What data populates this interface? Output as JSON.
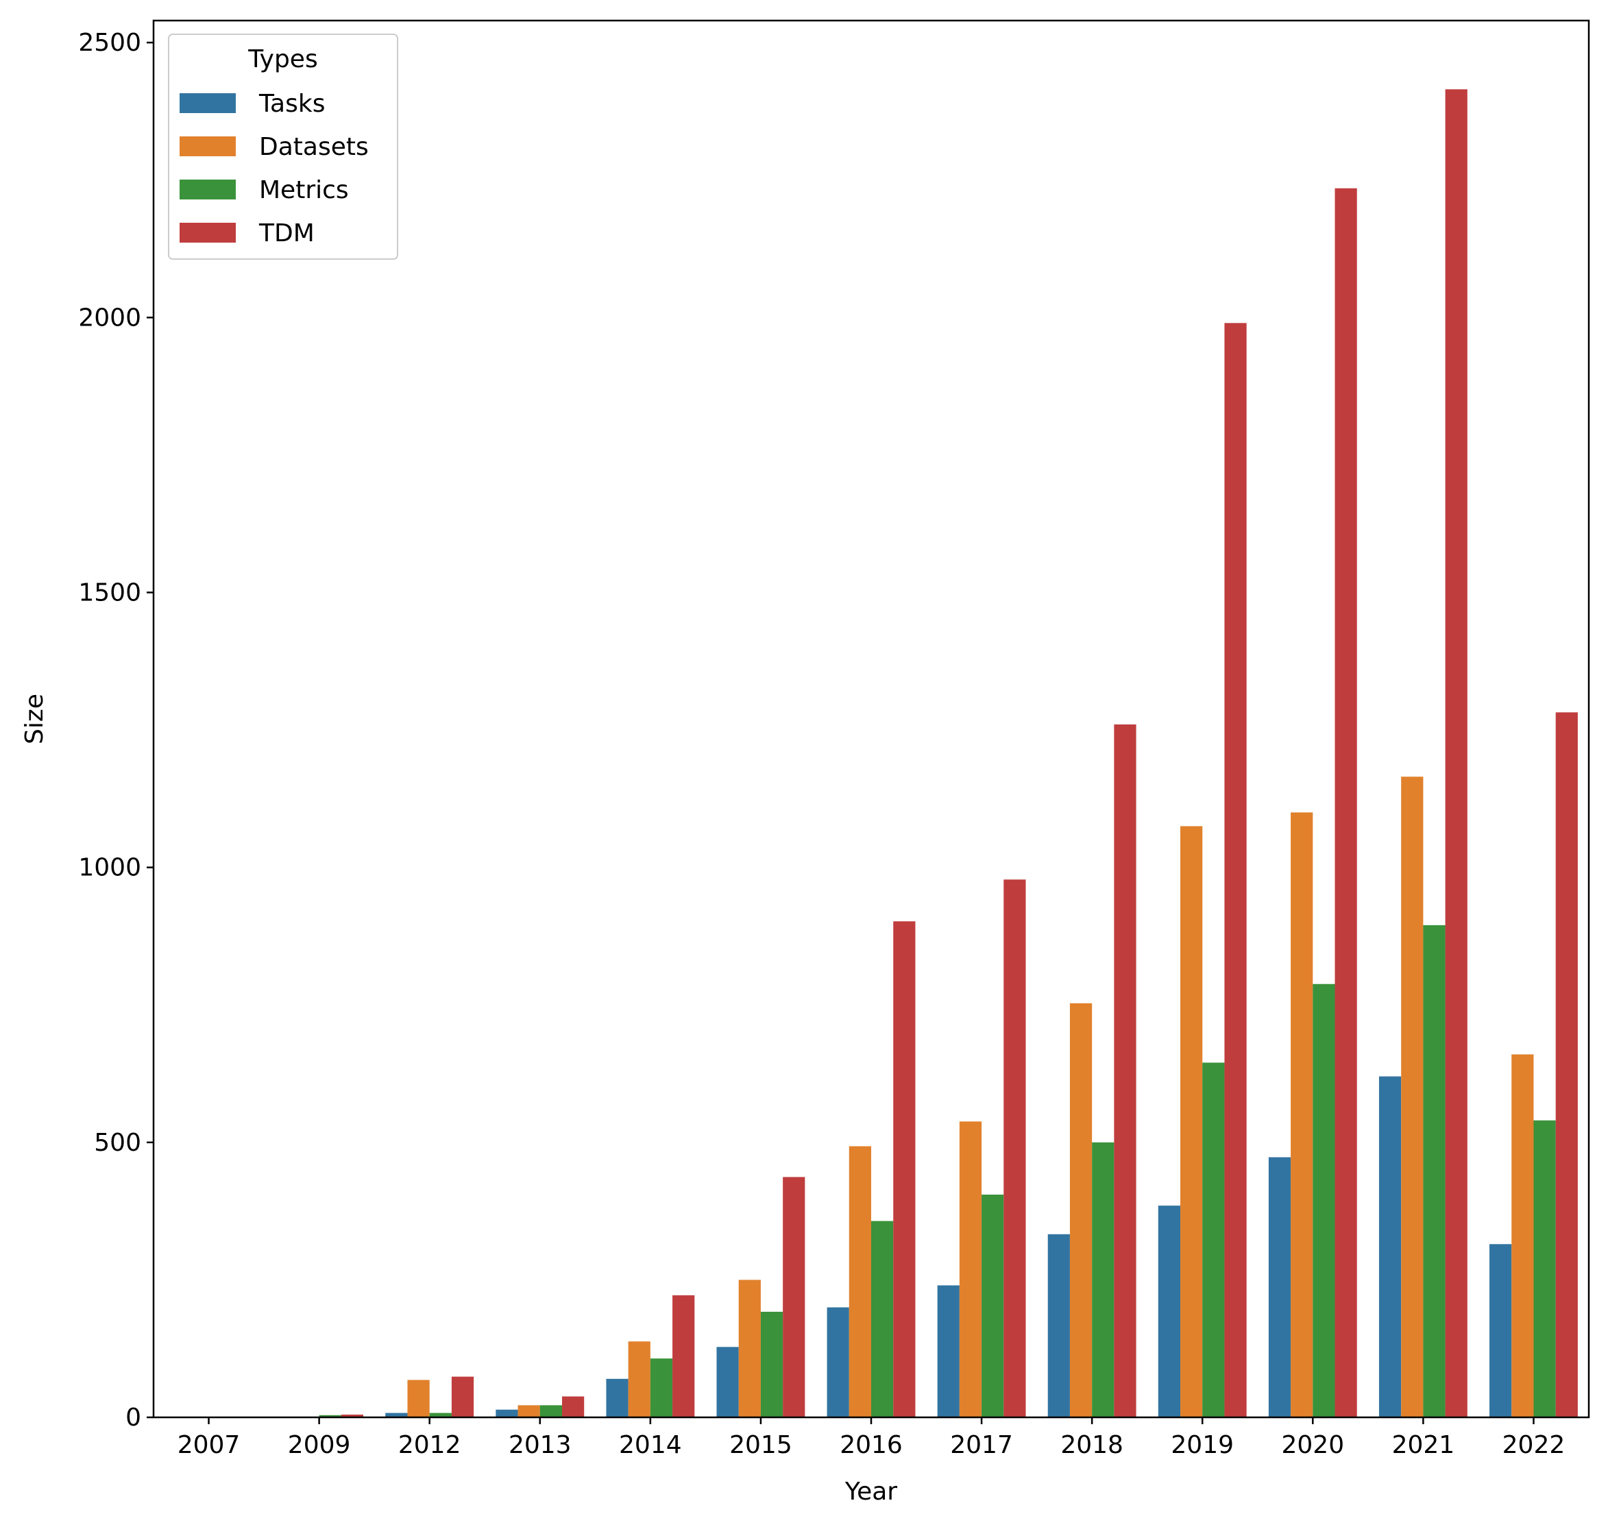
{
  "chart_data": {
    "type": "bar",
    "title": "",
    "xlabel": "Year",
    "ylabel": "Size",
    "ylim": [
      0,
      2540
    ],
    "yticks": [
      0,
      500,
      1000,
      1500,
      2000,
      2500
    ],
    "categories": [
      "2007",
      "2009",
      "2012",
      "2013",
      "2014",
      "2015",
      "2016",
      "2017",
      "2018",
      "2019",
      "2020",
      "2021",
      "2022"
    ],
    "legend": {
      "title": "Types",
      "position": "top-left"
    },
    "series": [
      {
        "name": "Tasks",
        "color": "#3274a1",
        "values": [
          1,
          1,
          8,
          14,
          70,
          128,
          200,
          240,
          333,
          385,
          473,
          620,
          315
        ]
      },
      {
        "name": "Datasets",
        "color": "#e1812c",
        "values": [
          1,
          1,
          68,
          22,
          138,
          250,
          493,
          538,
          753,
          1075,
          1100,
          1165,
          660
        ]
      },
      {
        "name": "Metrics",
        "color": "#3a923a",
        "values": [
          1,
          4,
          8,
          22,
          107,
          192,
          357,
          405,
          500,
          645,
          788,
          895,
          540
        ]
      },
      {
        "name": "TDM",
        "color": "#c03d3e",
        "values": [
          1,
          5,
          74,
          38,
          222,
          437,
          902,
          978,
          1260,
          1990,
          2235,
          2415,
          1282
        ]
      }
    ]
  }
}
